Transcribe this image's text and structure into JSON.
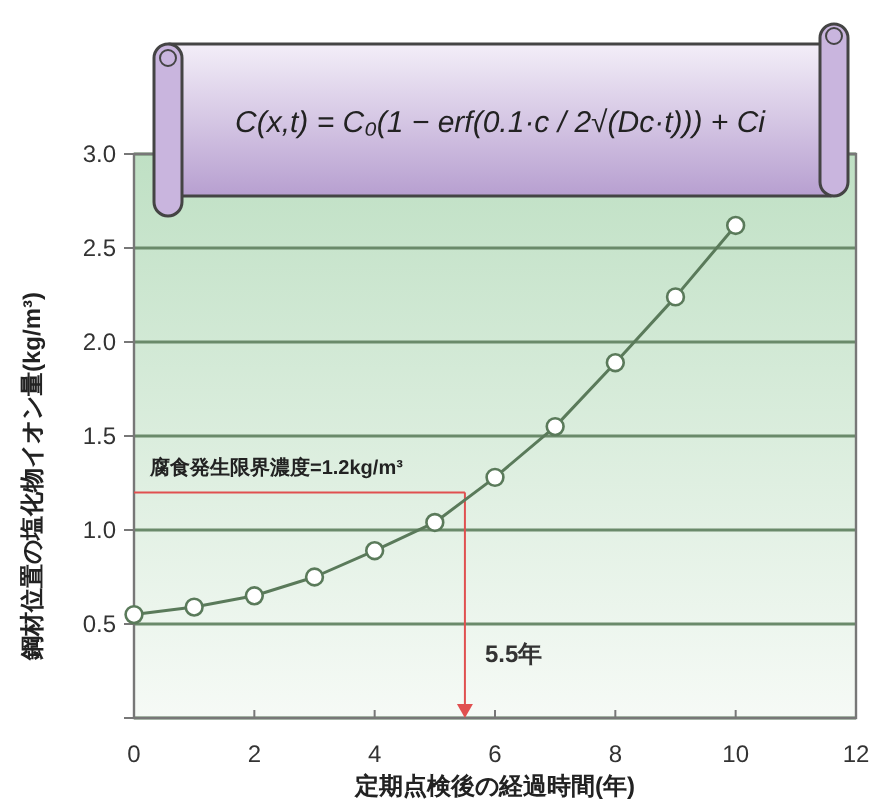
{
  "chart_data": {
    "type": "line",
    "title": "C(x,t) = C₀(1 − erf(0.1·c / 2√(Dc·t))) + Ci",
    "xlabel": "定期点検後の経過時間(年)",
    "ylabel": "鋼材位置の塩化物イオン量(kg/m³)",
    "x": [
      0,
      1,
      2,
      3,
      4,
      5,
      6,
      7,
      8,
      9,
      10
    ],
    "series": [
      {
        "color": "#5a7a5a",
        "values": [
          0.55,
          0.59,
          0.65,
          0.75,
          0.89,
          1.04,
          1.28,
          1.55,
          1.89,
          2.24,
          2.62
        ]
      }
    ],
    "marker": "circle",
    "xlim": [
      0,
      12
    ],
    "xticks": [
      0,
      2,
      4,
      6,
      8,
      10,
      12
    ],
    "ylim": [
      0,
      3.0
    ],
    "yticks": [
      {
        "value": 0,
        "label": null
      },
      0.5,
      {
        "value": 1.0,
        "label": "1.0"
      },
      1.5,
      {
        "value": 2.0,
        "label": "2.0"
      },
      2.5,
      {
        "value": 3.0,
        "label": "3.0"
      }
    ],
    "grid": "y",
    "ref_lines": [
      {
        "axis": "y",
        "value": 1.2,
        "label": "腐食発生限界濃度=1.2kg/m³",
        "color": "#e05050"
      },
      {
        "axis": "x",
        "value": 5.5,
        "label": "5.5年",
        "color": "#e05050"
      }
    ]
  }
}
